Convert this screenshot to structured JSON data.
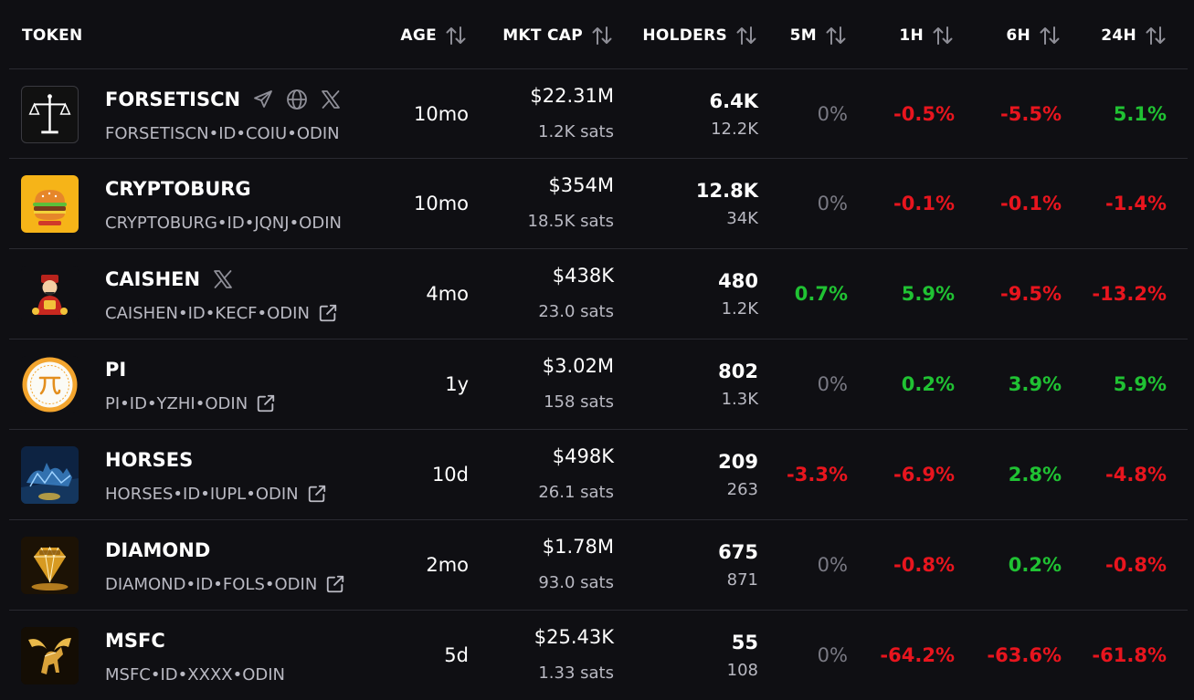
{
  "columns": {
    "token": "TOKEN",
    "age": "AGE",
    "mkt_cap": "MKT CAP",
    "holders": "HOLDERS",
    "m5": "5M",
    "h1": "1H",
    "h6": "6H",
    "h24": "24H"
  },
  "colors": {
    "positive": "#20c233",
    "negative": "#e8151e",
    "neutral": "#7a7a84",
    "background": "#0f0f13"
  },
  "rows": [
    {
      "name": "FORSETISCN",
      "id": "FORSETISCN•ID•COIU•ODIN",
      "age": "10mo",
      "mkt_cap": "$22.31M",
      "sats": "1.2K sats",
      "holders": "6.4K",
      "holders_sub": "12.2K",
      "m5": "0%",
      "h1": "-0.5%",
      "h6": "-5.5%",
      "h24": "5.1%",
      "socials": [
        "telegram-icon",
        "globe-icon",
        "x-icon"
      ],
      "external": false,
      "logo": "scales-logo"
    },
    {
      "name": "CRYPTOBURG",
      "id": "CRYPTOBURG•ID•JQNJ•ODIN",
      "age": "10mo",
      "mkt_cap": "$354M",
      "sats": "18.5K sats",
      "holders": "12.8K",
      "holders_sub": "34K",
      "m5": "0%",
      "h1": "-0.1%",
      "h6": "-0.1%",
      "h24": "-1.4%",
      "socials": [],
      "external": false,
      "logo": "burger-logo"
    },
    {
      "name": "CAISHEN",
      "id": "CAISHEN•ID•KECF•ODIN",
      "age": "4mo",
      "mkt_cap": "$438K",
      "sats": "23.0 sats",
      "holders": "480",
      "holders_sub": "1.2K",
      "m5": "0.7%",
      "h1": "5.9%",
      "h6": "-9.5%",
      "h24": "-13.2%",
      "socials": [
        "x-icon"
      ],
      "external": true,
      "logo": "caishen-logo"
    },
    {
      "name": "PI",
      "id": "PI•ID•YZHI•ODIN",
      "age": "1y",
      "mkt_cap": "$3.02M",
      "sats": "158 sats",
      "holders": "802",
      "holders_sub": "1.3K",
      "m5": "0%",
      "h1": "0.2%",
      "h6": "3.9%",
      "h24": "5.9%",
      "socials": [],
      "external": true,
      "logo": "pi-logo"
    },
    {
      "name": "HORSES",
      "id": "HORSES•ID•IUPL•ODIN",
      "age": "10d",
      "mkt_cap": "$498K",
      "sats": "26.1 sats",
      "holders": "209",
      "holders_sub": "263",
      "m5": "-3.3%",
      "h1": "-6.9%",
      "h6": "2.8%",
      "h24": "-4.8%",
      "socials": [],
      "external": true,
      "logo": "horses-logo"
    },
    {
      "name": "DIAMOND",
      "id": "DIAMOND•ID•FOLS•ODIN",
      "age": "2mo",
      "mkt_cap": "$1.78M",
      "sats": "93.0 sats",
      "holders": "675",
      "holders_sub": "871",
      "m5": "0%",
      "h1": "-0.8%",
      "h6": "0.2%",
      "h24": "-0.8%",
      "socials": [],
      "external": true,
      "logo": "diamond-logo"
    },
    {
      "name": "MSFC",
      "id": "MSFC•ID•XXXX•ODIN",
      "age": "5d",
      "mkt_cap": "$25.43K",
      "sats": "1.33 sats",
      "holders": "55",
      "holders_sub": "108",
      "m5": "0%",
      "h1": "-64.2%",
      "h6": "-63.6%",
      "h24": "-61.8%",
      "socials": [],
      "external": false,
      "logo": "pegasus-logo"
    }
  ]
}
